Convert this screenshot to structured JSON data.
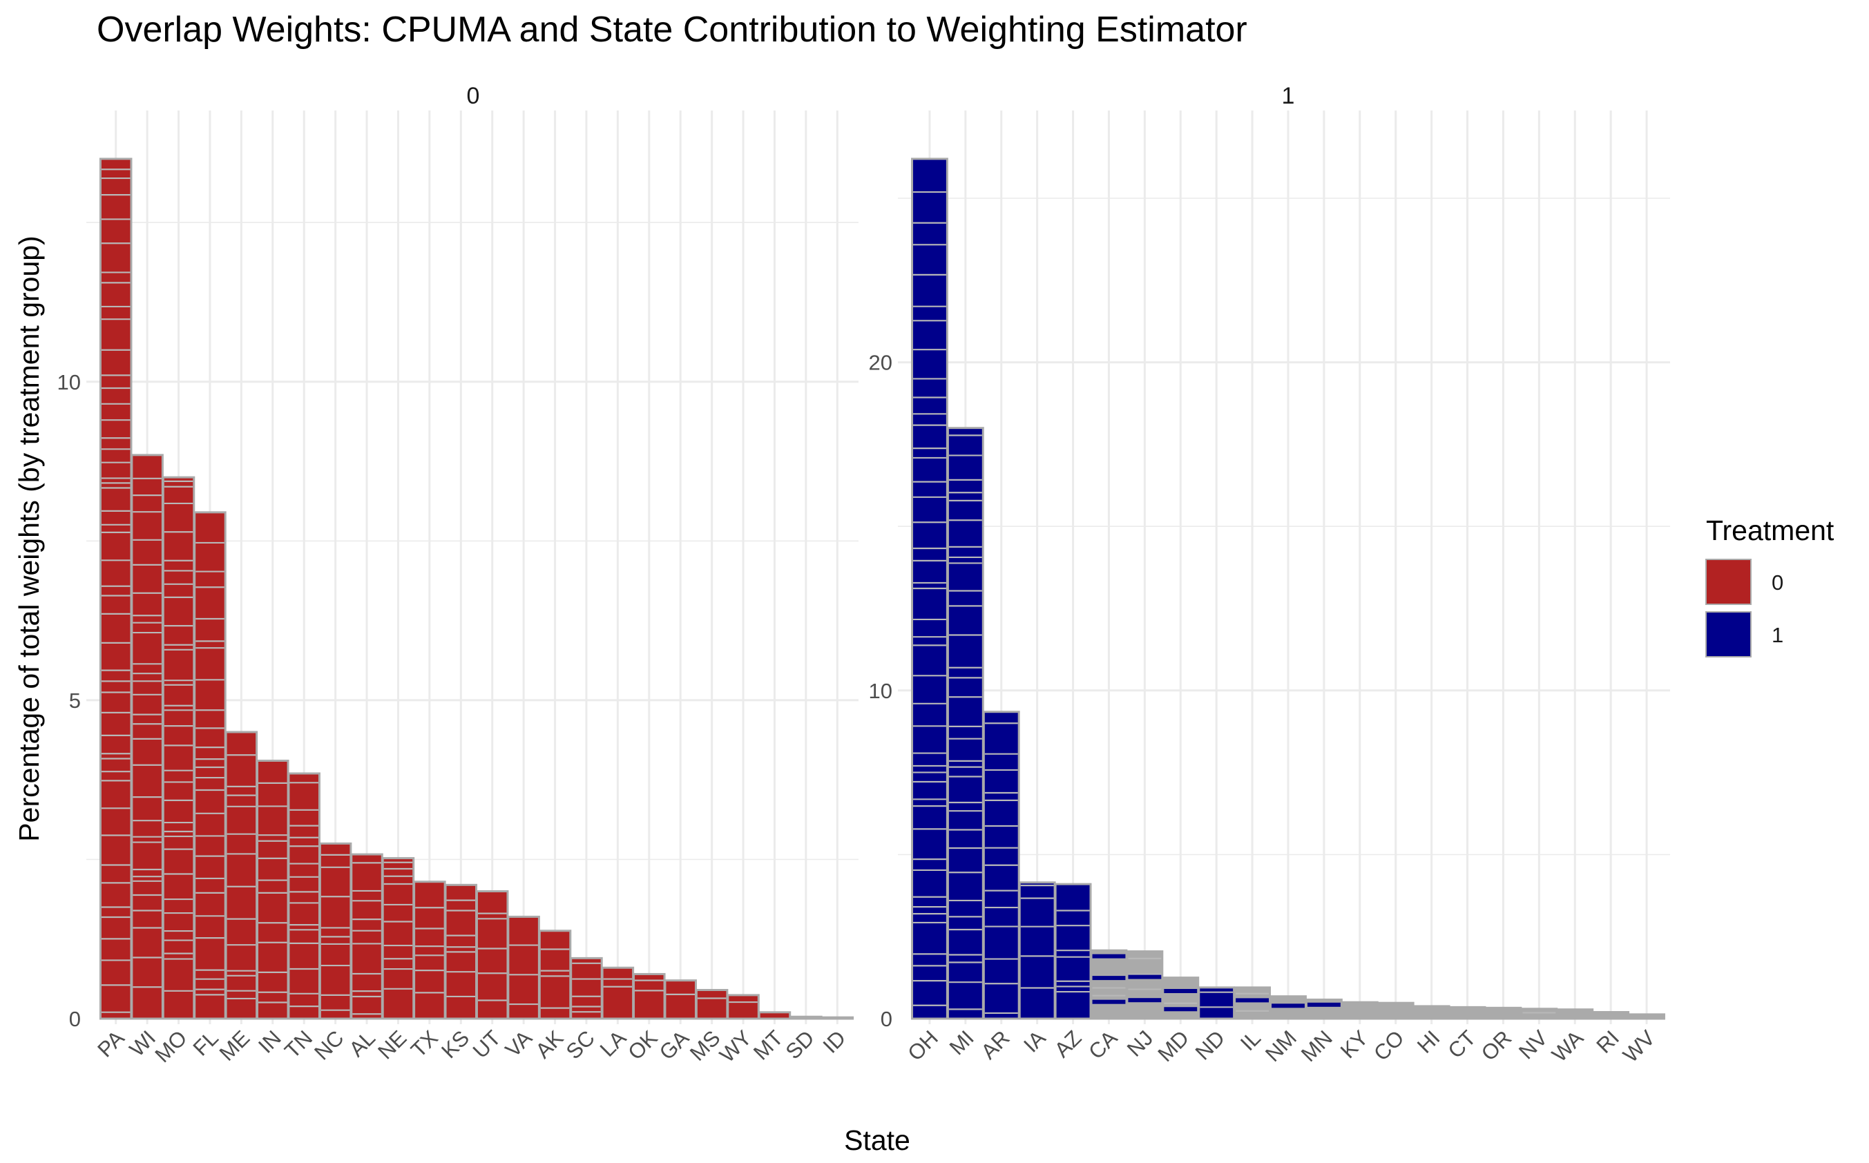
{
  "chart_data": {
    "type": "bar",
    "title": "Overlap Weights: CPUMA and State Contribution to Weighting Estimator",
    "xlabel": "State",
    "ylabel": "Percentage of total weights (by treatment group)",
    "legend": {
      "title": "Treatment",
      "position": "right",
      "entries": [
        {
          "label": "0",
          "color": "#b22222"
        },
        {
          "label": "1",
          "color": "#00008b"
        }
      ]
    },
    "colors": {
      "treatment_0": "#b22222",
      "treatment_1": "#00008b",
      "no_treatment": "#aaaaaa",
      "segment_outline": "#b0b0b0"
    },
    "grid": true,
    "panels": [
      {
        "strip": "0",
        "ylim": [
          0,
          13.5
        ],
        "y_ticks": [
          0,
          5,
          10
        ],
        "categories": [
          "PA",
          "WI",
          "MO",
          "FL",
          "ME",
          "IN",
          "TN",
          "NC",
          "AL",
          "NE",
          "TX",
          "KS",
          "UT",
          "VA",
          "AK",
          "SC",
          "LA",
          "OK",
          "GA",
          "MS",
          "WY",
          "MT",
          "SD",
          "ID"
        ],
        "values": [
          13.5,
          8.85,
          8.5,
          7.95,
          4.5,
          4.05,
          3.85,
          2.75,
          2.58,
          2.52,
          2.15,
          2.1,
          2.0,
          1.6,
          1.38,
          0.95,
          0.8,
          0.7,
          0.6,
          0.45,
          0.37,
          0.1,
          0.03,
          0.02
        ],
        "fill": [
          "0",
          "0",
          "0",
          "0",
          "0",
          "0",
          "0",
          "0",
          "0",
          "0",
          "0",
          "0",
          "0",
          "0",
          "0",
          "0",
          "0",
          "0",
          "0",
          "0",
          "0",
          "0",
          "0",
          "0"
        ]
      },
      {
        "strip": "1",
        "ylim": [
          0,
          26.2
        ],
        "y_ticks": [
          0,
          10,
          20
        ],
        "categories": [
          "OH",
          "MI",
          "AR",
          "IA",
          "AZ",
          "CA",
          "NJ",
          "MD",
          "ND",
          "IL",
          "NM",
          "MN",
          "KY",
          "CO",
          "HI",
          "CT",
          "OR",
          "NV",
          "WA",
          "RI",
          "WV"
        ],
        "values": [
          26.2,
          18.0,
          9.35,
          4.15,
          4.1,
          2.08,
          2.05,
          1.25,
          0.95,
          0.95,
          0.68,
          0.58,
          0.5,
          0.48,
          0.38,
          0.35,
          0.33,
          0.3,
          0.28,
          0.2,
          0.13
        ],
        "fill": [
          "1",
          "1",
          "1",
          "1",
          "1",
          "mixed",
          "mixed",
          "mixed",
          "1",
          "mixed",
          "mixed",
          "mixed",
          "none",
          "none",
          "mixed",
          "none",
          "none",
          "mixed",
          "none",
          "none",
          "none"
        ]
      }
    ]
  }
}
